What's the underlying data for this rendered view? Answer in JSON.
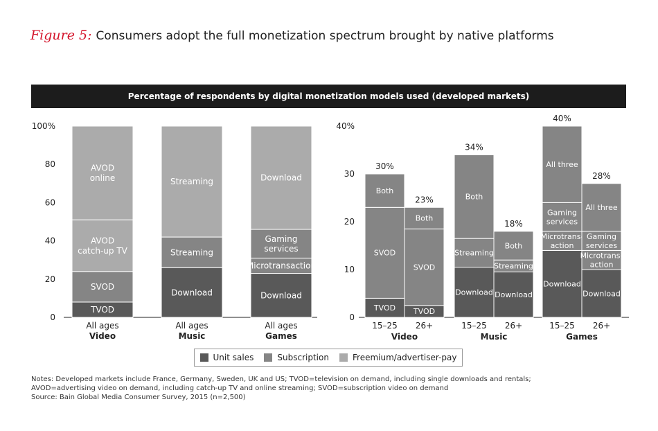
{
  "header": {
    "figure_label": "Figure 5:",
    "title": "Consumers adopt the full monetization spectrum brought by native platforms"
  },
  "banner": {
    "text": "Percentage of respondents by digital monetization models used (developed markets)"
  },
  "colors": {
    "unit_sales": "#595959",
    "subscription": "#858585",
    "freemium": "#ababab",
    "label": "#ffffff",
    "text": "#222222"
  },
  "chart_data": [
    {
      "type": "bar",
      "stacked": true,
      "title": "Percentage of respondents by digital monetization models used (developed markets)",
      "ylim": [
        0,
        100
      ],
      "yticks": [
        "0",
        "20",
        "40",
        "60",
        "80",
        "100%"
      ],
      "categories": [
        {
          "line1": "All ages",
          "line2": "Video"
        },
        {
          "line1": "All ages",
          "line2": "Music"
        },
        {
          "line1": "All ages",
          "line2": "Games"
        }
      ],
      "bars": [
        {
          "segments": [
            {
              "type": "unit_sales",
              "value": 8,
              "label": "TVOD"
            },
            {
              "type": "subscription",
              "value": 16,
              "label": "SVOD"
            },
            {
              "type": "freemium",
              "value": 27,
              "label": "AVOD\ncatch-up TV"
            },
            {
              "type": "freemium",
              "value": 49,
              "label": "AVOD\nonline"
            }
          ]
        },
        {
          "segments": [
            {
              "type": "unit_sales",
              "value": 26,
              "label": "Download"
            },
            {
              "type": "subscription",
              "value": 16,
              "label": "Streaming"
            },
            {
              "type": "freemium",
              "value": 58,
              "label": "Streaming"
            }
          ]
        },
        {
          "segments": [
            {
              "type": "unit_sales",
              "value": 23,
              "label": "Download"
            },
            {
              "type": "subscription",
              "value": 8,
              "label": "Microtransaction"
            },
            {
              "type": "subscription",
              "value": 15,
              "label": "Gaming\nservices"
            },
            {
              "type": "freemium",
              "value": 54,
              "label": "Download"
            }
          ]
        }
      ]
    },
    {
      "type": "bar",
      "stacked": true,
      "ylim": [
        0,
        40
      ],
      "yticks": [
        "0",
        "10",
        "20",
        "30",
        "40%"
      ],
      "groups": [
        "Video",
        "Music",
        "Games"
      ],
      "bars": [
        {
          "group": 0,
          "age": "15–25",
          "total": "30%",
          "segments": [
            {
              "type": "unit_sales",
              "value": 4,
              "label": "TVOD"
            },
            {
              "type": "subscription",
              "value": 19,
              "label": "SVOD"
            },
            {
              "type": "subscription",
              "value": 7,
              "label": "Both"
            }
          ]
        },
        {
          "group": 0,
          "age": "26+",
          "total": "23%",
          "segments": [
            {
              "type": "unit_sales",
              "value": 2.5,
              "label": "TVOD"
            },
            {
              "type": "subscription",
              "value": 16,
              "label": "SVOD"
            },
            {
              "type": "subscription",
              "value": 4.5,
              "label": "Both"
            }
          ]
        },
        {
          "group": 1,
          "age": "15–25",
          "total": "34%",
          "segments": [
            {
              "type": "unit_sales",
              "value": 10.5,
              "label": "Download"
            },
            {
              "type": "subscription",
              "value": 6,
              "label": "Streaming"
            },
            {
              "type": "subscription",
              "value": 17.5,
              "label": "Both"
            }
          ]
        },
        {
          "group": 1,
          "age": "26+",
          "total": "18%",
          "segments": [
            {
              "type": "unit_sales",
              "value": 9.5,
              "label": "Download"
            },
            {
              "type": "subscription",
              "value": 2.5,
              "label": "Streaming"
            },
            {
              "type": "subscription",
              "value": 6,
              "label": "Both"
            }
          ]
        },
        {
          "group": 2,
          "age": "15–25",
          "total": "40%",
          "segments": [
            {
              "type": "unit_sales",
              "value": 14,
              "label": "Download"
            },
            {
              "type": "subscription",
              "value": 4,
              "label": "Microtrans-\naction"
            },
            {
              "type": "subscription",
              "value": 6,
              "label": "Gaming\nservices"
            },
            {
              "type": "subscription",
              "value": 16,
              "label": "All three"
            }
          ]
        },
        {
          "group": 2,
          "age": "26+",
          "total": "28%",
          "segments": [
            {
              "type": "unit_sales",
              "value": 10,
              "label": "Download"
            },
            {
              "type": "subscription",
              "value": 4,
              "label": "Microtrans-\naction"
            },
            {
              "type": "subscription",
              "value": 4,
              "label": "Gaming\nservices"
            },
            {
              "type": "subscription",
              "value": 10,
              "label": "All three"
            }
          ]
        }
      ]
    }
  ],
  "legend": [
    {
      "key": "unit_sales",
      "label": "Unit sales"
    },
    {
      "key": "subscription",
      "label": "Subscription"
    },
    {
      "key": "freemium",
      "label": "Freemium/advertiser-pay"
    }
  ],
  "notes": {
    "line1": "Notes: Developed markets include France, Germany, Sweden, UK and US; TVOD=television on demand, including single downloads and rentals;",
    "line2": "AVOD=advertising video on demand, including catch-up TV and online streaming; SVOD=subscription video on demand",
    "source": "Source: Bain Global Media Consumer Survey, 2015 (n=2,500)"
  }
}
